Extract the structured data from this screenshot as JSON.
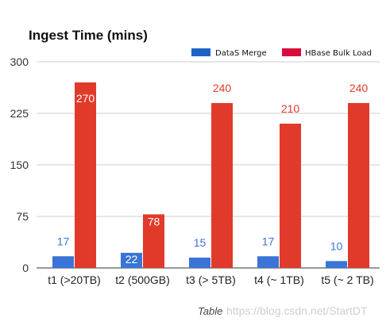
{
  "chart_data": {
    "type": "bar",
    "title": "Ingest Time (mins)",
    "categories": [
      "t1 (>20TB)",
      "t2 (500GB)",
      "t3 (> 5TB)",
      "t4 (~ 1TB)",
      "t5 (~ 2 TB)"
    ],
    "series": [
      {
        "name": "DataS Merge",
        "color": "#3a74d6",
        "values": [
          17,
          22,
          15,
          17,
          10
        ],
        "labels": [
          "17",
          "22",
          "15",
          "17",
          "10"
        ]
      },
      {
        "name": "HBase Bulk Load",
        "color": "#e13a2a",
        "values": [
          270,
          78,
          240,
          210,
          240
        ],
        "labels": [
          "270",
          "78",
          "240",
          "210",
          "240"
        ]
      }
    ],
    "legend_swatch_colors": [
      "#1f63c6",
      "#d90b3a"
    ],
    "yticks": [
      "0",
      "75",
      "150",
      "225",
      "300"
    ],
    "ytick_values": [
      0,
      75,
      150,
      225,
      300
    ],
    "ylim": [
      0,
      300
    ],
    "grid": true,
    "legend_position": "top-right",
    "xlabel": "",
    "ylabel": ""
  },
  "caption": "Table",
  "watermark": "https://blog.csdn.net/StartDT"
}
